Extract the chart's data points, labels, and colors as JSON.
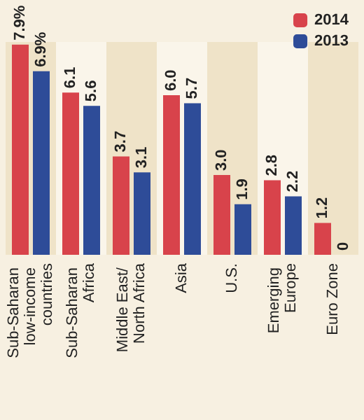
{
  "chart_data": {
    "type": "bar",
    "categories": [
      "Sub-Saharan low-income countries",
      "Sub-Saharan Africa",
      "Middle East/ North Africa",
      "Asia",
      "U.S.",
      "Emerging Europe",
      "Euro Zone"
    ],
    "series": [
      {
        "name": "2014",
        "color": "#d8434b",
        "values": [
          7.9,
          6.1,
          3.7,
          6.0,
          3.0,
          2.8,
          1.2
        ],
        "value_labels": [
          "7.9%",
          "6.1",
          "3.7",
          "6.0",
          "3.0",
          "2.8",
          "1.2"
        ]
      },
      {
        "name": "2013",
        "color": "#2e4c98",
        "values": [
          6.9,
          5.6,
          3.1,
          5.7,
          1.9,
          2.2,
          0
        ],
        "value_labels": [
          "6.9%",
          "5.6",
          "3.1",
          "5.7",
          "1.9",
          "2.2",
          "0"
        ]
      }
    ],
    "ylim": [
      0,
      8
    ],
    "tick_labels": "x",
    "legend": "top right"
  }
}
